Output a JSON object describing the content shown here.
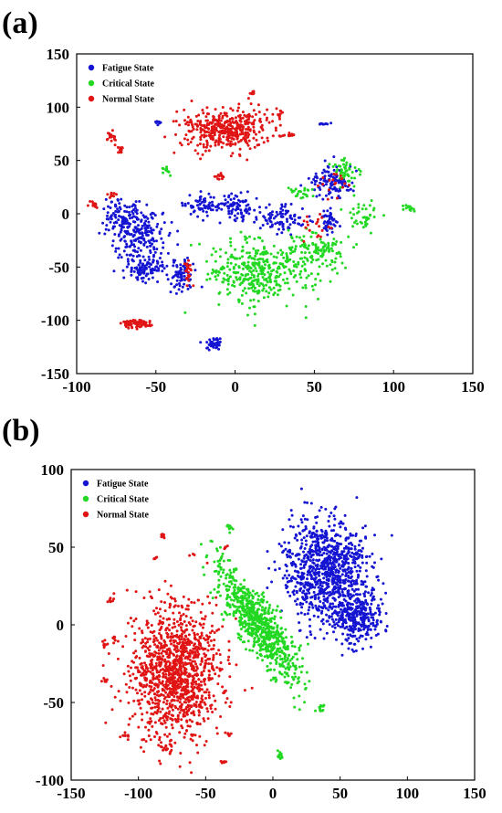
{
  "figure": {
    "panels": [
      {
        "label": "(a)"
      },
      {
        "label": "(b)"
      }
    ]
  },
  "chart_data": [
    {
      "type": "scatter",
      "panel": "(a)",
      "title": "",
      "xlabel": "",
      "ylabel": "",
      "xlim": [
        -100,
        150
      ],
      "ylim": [
        -150,
        150
      ],
      "x_ticks": [
        -100,
        -50,
        0,
        50,
        100,
        150
      ],
      "y_ticks": [
        -150,
        -100,
        -50,
        0,
        50,
        100,
        150
      ],
      "x_tick_labels": [
        "-100",
        "-50",
        "0",
        "50",
        "100",
        "150"
      ],
      "y_tick_labels": [
        "-150",
        "-100",
        "-50",
        "0",
        "50",
        "100",
        "150"
      ],
      "legend_position": "top-left",
      "grid": false,
      "series": [
        {
          "name": "Fatigue State",
          "color": "#1414d2",
          "clusters": [
            {
              "cx": -72,
              "cy": -5,
              "rx": 10,
              "ry": 18,
              "n": 110
            },
            {
              "cx": -60,
              "cy": -20,
              "rx": 14,
              "ry": 22,
              "n": 170
            },
            {
              "cx": -55,
              "cy": -50,
              "rx": 13,
              "ry": 12,
              "n": 110
            },
            {
              "cx": -33,
              "cy": -58,
              "rx": 7,
              "ry": 14,
              "n": 70
            },
            {
              "cx": -20,
              "cy": 8,
              "rx": 10,
              "ry": 10,
              "n": 70
            },
            {
              "cx": 0,
              "cy": 5,
              "rx": 12,
              "ry": 12,
              "n": 80
            },
            {
              "cx": 30,
              "cy": -5,
              "rx": 14,
              "ry": 12,
              "n": 90
            },
            {
              "cx": 62,
              "cy": 30,
              "rx": 13,
              "ry": 14,
              "n": 110
            },
            {
              "cx": 60,
              "cy": -8,
              "rx": 6,
              "ry": 10,
              "n": 40
            },
            {
              "cx": -14,
              "cy": -122,
              "rx": 5,
              "ry": 5,
              "n": 40
            },
            {
              "cx": 56,
              "cy": 84,
              "rx": 3,
              "ry": 1.5,
              "n": 10
            },
            {
              "cx": -48,
              "cy": 86,
              "rx": 3,
              "ry": 2,
              "n": 10
            }
          ]
        },
        {
          "name": "Critical State",
          "color": "#22d822",
          "clusters": [
            {
              "cx": 15,
              "cy": -55,
              "rx": 30,
              "ry": 28,
              "n": 380
            },
            {
              "cx": 50,
              "cy": -35,
              "rx": 18,
              "ry": 14,
              "n": 120
            },
            {
              "cx": 70,
              "cy": 40,
              "rx": 8,
              "ry": 10,
              "n": 50
            },
            {
              "cx": 110,
              "cy": 5,
              "rx": 4,
              "ry": 3,
              "n": 14
            },
            {
              "cx": -43,
              "cy": 41,
              "rx": 3,
              "ry": 3,
              "n": 12
            },
            {
              "cx": 80,
              "cy": 0,
              "rx": 10,
              "ry": 12,
              "n": 40
            },
            {
              "cx": 40,
              "cy": 20,
              "rx": 8,
              "ry": 6,
              "n": 25
            }
          ]
        },
        {
          "name": "Normal State",
          "color": "#e01414",
          "clusters": [
            {
              "cx": -5,
              "cy": 80,
              "rx": 26,
              "ry": 17,
              "n": 420
            },
            {
              "cx": -63,
              "cy": -103,
              "rx": 8,
              "ry": 3.5,
              "n": 70
            },
            {
              "cx": -78,
              "cy": 73,
              "rx": 3,
              "ry": 6,
              "n": 18
            },
            {
              "cx": -72,
              "cy": 60,
              "rx": 2,
              "ry": 5,
              "n": 12
            },
            {
              "cx": -90,
              "cy": 8,
              "rx": 3,
              "ry": 3,
              "n": 12
            },
            {
              "cx": -77,
              "cy": 18,
              "rx": 3,
              "ry": 3,
              "n": 10
            },
            {
              "cx": 12,
              "cy": 113,
              "rx": 3,
              "ry": 1.5,
              "n": 10
            },
            {
              "cx": 28,
              "cy": 95,
              "rx": 2,
              "ry": 5,
              "n": 10
            },
            {
              "cx": 35,
              "cy": 73,
              "rx": 3,
              "ry": 1.5,
              "n": 8
            },
            {
              "cx": -30,
              "cy": -55,
              "rx": 2,
              "ry": 12,
              "n": 25
            },
            {
              "cx": -10,
              "cy": 35,
              "rx": 3,
              "ry": 4,
              "n": 14
            },
            {
              "cx": 50,
              "cy": -10,
              "rx": 10,
              "ry": 12,
              "n": 20
            },
            {
              "cx": 62,
              "cy": 28,
              "rx": 12,
              "ry": 12,
              "n": 18
            }
          ]
        }
      ]
    },
    {
      "type": "scatter",
      "panel": "(b)",
      "title": "",
      "xlabel": "",
      "ylabel": "",
      "xlim": [
        -150,
        150
      ],
      "ylim": [
        -100,
        100
      ],
      "x_ticks": [
        -150,
        -100,
        -50,
        0,
        50,
        100,
        150
      ],
      "y_ticks": [
        -100,
        -50,
        0,
        50,
        100
      ],
      "x_tick_labels": [
        "-150",
        "-100",
        "-50",
        "0",
        "50",
        "100",
        "150"
      ],
      "y_tick_labels": [
        "-100",
        "-50",
        "0",
        "50",
        "100"
      ],
      "legend_position": "top-left",
      "grid": false,
      "series": [
        {
          "name": "Fatigue State",
          "color": "#1414d2",
          "clusters": [
            {
              "cx": 40,
              "cy": 35,
              "rx": 28,
              "ry": 30,
              "n": 900
            },
            {
              "cx": 62,
              "cy": 5,
              "rx": 16,
              "ry": 14,
              "n": 300
            }
          ]
        },
        {
          "name": "Critical State",
          "color": "#22d822",
          "clusters": [
            {
              "cx": -10,
              "cy": 0,
              "rx": 40,
              "ry": 12,
              "rot": -52,
              "n": 750
            },
            {
              "cx": -32,
              "cy": 63,
              "rx": 2,
              "ry": 3,
              "n": 12
            },
            {
              "cx": 5,
              "cy": -84,
              "rx": 2,
              "ry": 3,
              "n": 12
            },
            {
              "cx": 36,
              "cy": -53,
              "rx": 3,
              "ry": 2,
              "n": 12
            }
          ]
        },
        {
          "name": "Normal State",
          "color": "#e01414",
          "clusters": [
            {
              "cx": -72,
              "cy": -30,
              "rx": 30,
              "ry": 40,
              "n": 1200
            },
            {
              "cx": -82,
              "cy": 57,
              "rx": 2,
              "ry": 2,
              "n": 8
            },
            {
              "cx": -88,
              "cy": 43,
              "rx": 2,
              "ry": 1,
              "n": 6
            },
            {
              "cx": -120,
              "cy": 16,
              "rx": 2,
              "ry": 2,
              "n": 8
            },
            {
              "cx": -125,
              "cy": -12,
              "rx": 2,
              "ry": 3,
              "n": 8
            },
            {
              "cx": -118,
              "cy": -10,
              "rx": 2,
              "ry": 2,
              "n": 6
            },
            {
              "cx": -124,
              "cy": -36,
              "rx": 2,
              "ry": 3,
              "n": 8
            },
            {
              "cx": -110,
              "cy": -72,
              "rx": 3,
              "ry": 2,
              "n": 8
            },
            {
              "cx": -80,
              "cy": -80,
              "rx": 3,
              "ry": 3,
              "n": 10
            },
            {
              "cx": -32,
              "cy": -71,
              "rx": 2,
              "ry": 1,
              "n": 6
            },
            {
              "cx": -37,
              "cy": -88,
              "rx": 2,
              "ry": 1,
              "n": 6
            },
            {
              "cx": -35,
              "cy": 50,
              "rx": 2,
              "ry": 1,
              "n": 6
            }
          ]
        }
      ]
    }
  ]
}
